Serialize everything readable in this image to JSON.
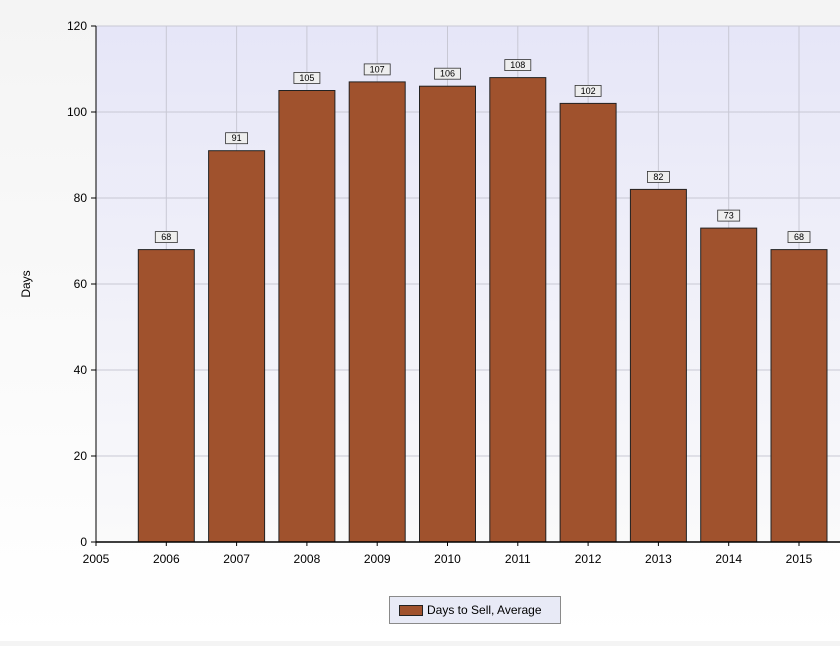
{
  "chart_data": {
    "type": "bar",
    "title": "",
    "xlabel": "",
    "ylabel": "Days",
    "categories": [
      "2006",
      "2007",
      "2008",
      "2009",
      "2010",
      "2011",
      "2012",
      "2013",
      "2014",
      "2015"
    ],
    "series": [
      {
        "name": "Days to Sell, Average",
        "values": [
          68,
          91,
          105,
          107,
          106,
          108,
          102,
          82,
          73,
          68
        ],
        "color": "#a0522d"
      }
    ],
    "xticks": [
      "2005",
      "2006",
      "2007",
      "2008",
      "2009",
      "2010",
      "2011",
      "2012",
      "2013",
      "2014",
      "2015"
    ],
    "yticks": [
      0,
      20,
      40,
      60,
      80,
      100,
      120
    ],
    "ylim": [
      0,
      120
    ],
    "grid": true,
    "legend_position": "bottom-center",
    "colors": {
      "bar": "#a0522d",
      "bar_border": "#222222",
      "plot_top": "#e6e6f8",
      "plot_bottom": "#fafafa",
      "grid": "#c8c8d4",
      "label_box": "#eeeeee",
      "legend_background": "#e8eaf6"
    }
  }
}
